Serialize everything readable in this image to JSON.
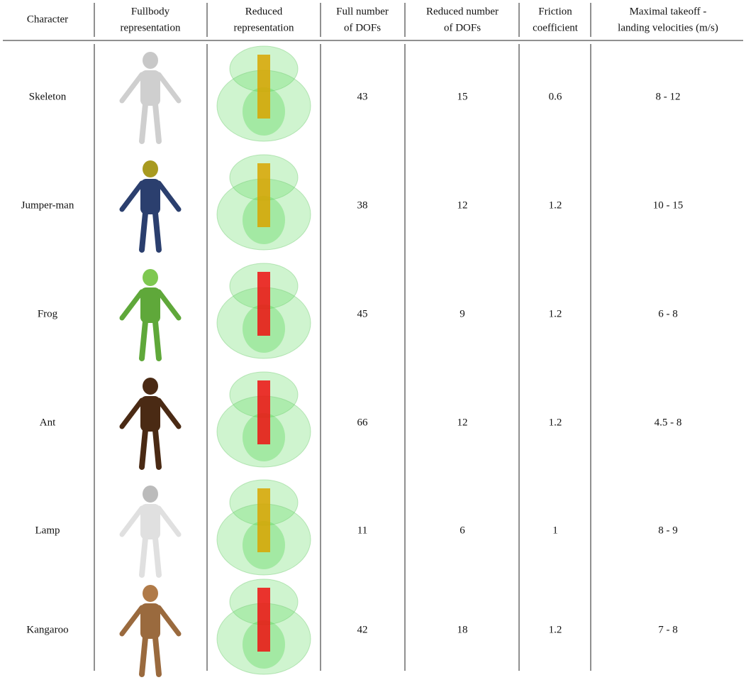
{
  "table": {
    "columns": [
      [
        "Character"
      ],
      [
        "Fullbody",
        "representation"
      ],
      [
        "Reduced",
        "representation"
      ],
      [
        "Full number",
        "of DOFs"
      ],
      [
        "Reduced number",
        "of DOFs"
      ],
      [
        "Friction",
        "coefficient"
      ],
      [
        "Maximal takeoff -",
        "landing velocities (m/s)"
      ]
    ],
    "rows": [
      [
        "Skeleton",
        43,
        15,
        0.6,
        "8 - 12"
      ],
      [
        "Jumper-man",
        38,
        12,
        1.2,
        "10 - 15"
      ],
      [
        "Frog",
        45,
        9,
        1.2,
        "6 - 8"
      ],
      [
        "Ant",
        66,
        12,
        1.2,
        "4.5 - 8"
      ],
      [
        "Lamp",
        11,
        6,
        1,
        "8 - 9"
      ],
      [
        "Kangaroo",
        42,
        18,
        1.2,
        "7 - 8"
      ]
    ]
  }
}
